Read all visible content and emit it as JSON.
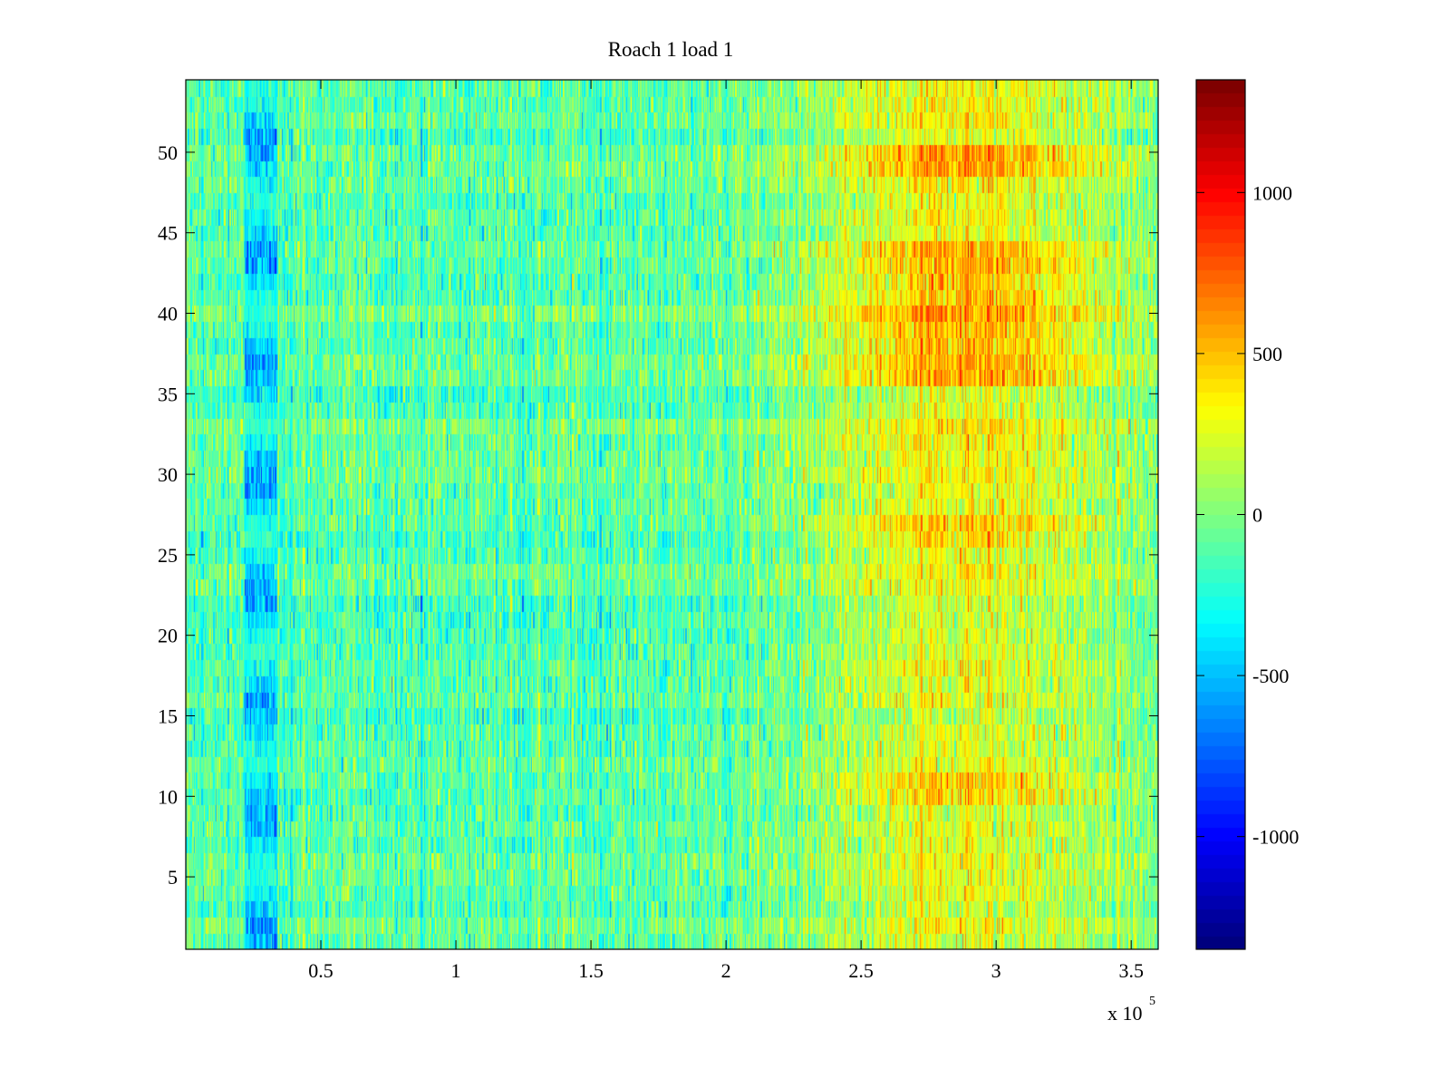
{
  "chart_data": {
    "type": "heatmap",
    "title": "Roach 1 load 1",
    "xlabel": "",
    "ylabel": "",
    "x_multiplier_label": "x 10",
    "x_multiplier_exp": "5",
    "xlim": [
      0,
      360000
    ],
    "ylim": [
      0.5,
      54.5
    ],
    "rows": 54,
    "x_ticks": [
      50000,
      100000,
      150000,
      200000,
      250000,
      300000,
      350000
    ],
    "x_tick_labels": [
      "0.5",
      "1",
      "1.5",
      "2",
      "2.5",
      "3",
      "3.5"
    ],
    "y_ticks": [
      5,
      10,
      15,
      20,
      25,
      30,
      35,
      40,
      45,
      50
    ],
    "y_tick_labels": [
      "5",
      "10",
      "15",
      "20",
      "25",
      "30",
      "35",
      "40",
      "45",
      "50"
    ],
    "colormap": "jet",
    "clim": [
      -1350,
      1350
    ],
    "colorbar_ticks": [
      -1000,
      -500,
      0,
      500,
      1000
    ],
    "colorbar_tick_labels": [
      "-1000",
      "-500",
      "0",
      "500",
      "1000"
    ],
    "features": {
      "baseline_mean": -100,
      "low_band_x": [
        22000,
        34000
      ],
      "low_band_value": -800,
      "high_region_x": [
        230000,
        330000
      ],
      "high_region_peak_x": 290000,
      "high_region_peak_value": 450,
      "hot_rows": [
        10,
        11,
        26,
        27,
        36,
        37,
        38,
        39,
        40,
        41,
        42,
        43,
        44,
        49,
        50
      ]
    }
  }
}
